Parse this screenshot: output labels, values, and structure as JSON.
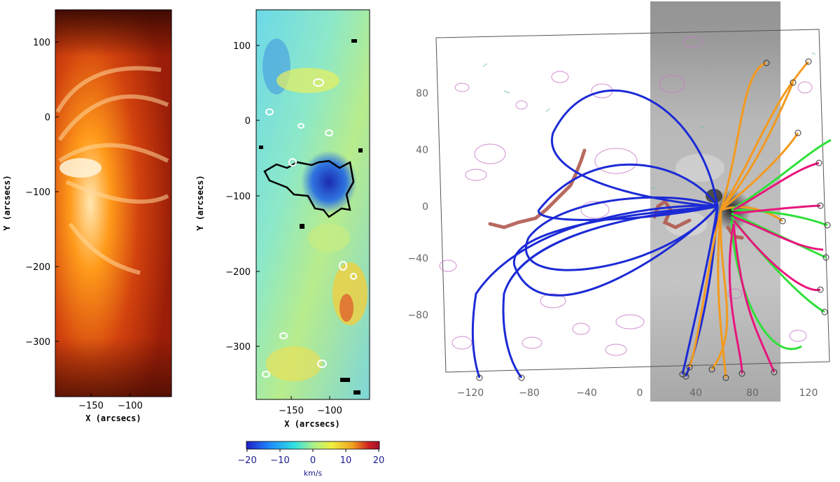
{
  "panels": {
    "left": {
      "image": "coronal-intensity-map",
      "x_ticks": [
        "−150",
        "−100"
      ],
      "y_ticks": [
        "100",
        "0",
        "−100",
        "−200",
        "−300"
      ],
      "xlabel": "X (arcsecs)",
      "ylabel": "Y (arcsecs)"
    },
    "middle": {
      "image": "doppler-velocity-map",
      "x_ticks": [
        "−150",
        "−100"
      ],
      "y_ticks": [
        "100",
        "0",
        "−100",
        "−200",
        "−300"
      ],
      "xlabel": "X (arcsecs)",
      "ylabel": "Y (arcsecs)",
      "colorbar": {
        "ticks": [
          "−20",
          "−10",
          "0",
          "10",
          "20"
        ],
        "unit": "km/s",
        "colors": [
          "#1f1fc8",
          "#1f8cff",
          "#30e0e0",
          "#a8f08c",
          "#f0f040",
          "#f0a020",
          "#d02020",
          "#a01030"
        ]
      }
    },
    "right": {
      "image": "magnetogram-field-extrapolation",
      "x_ticks": [
        "−120",
        "−80",
        "−40",
        "0",
        "40",
        "80",
        "120"
      ],
      "y_ticks": [
        "80",
        "40",
        "0",
        "−40",
        "−80"
      ],
      "line_colors": {
        "blue": "#1c2ad6",
        "orange": "#f39a1e",
        "green": "#2fe03a",
        "magenta": "#e8157d",
        "brown": "#b05a50",
        "contour": "#c77bc7"
      }
    }
  }
}
